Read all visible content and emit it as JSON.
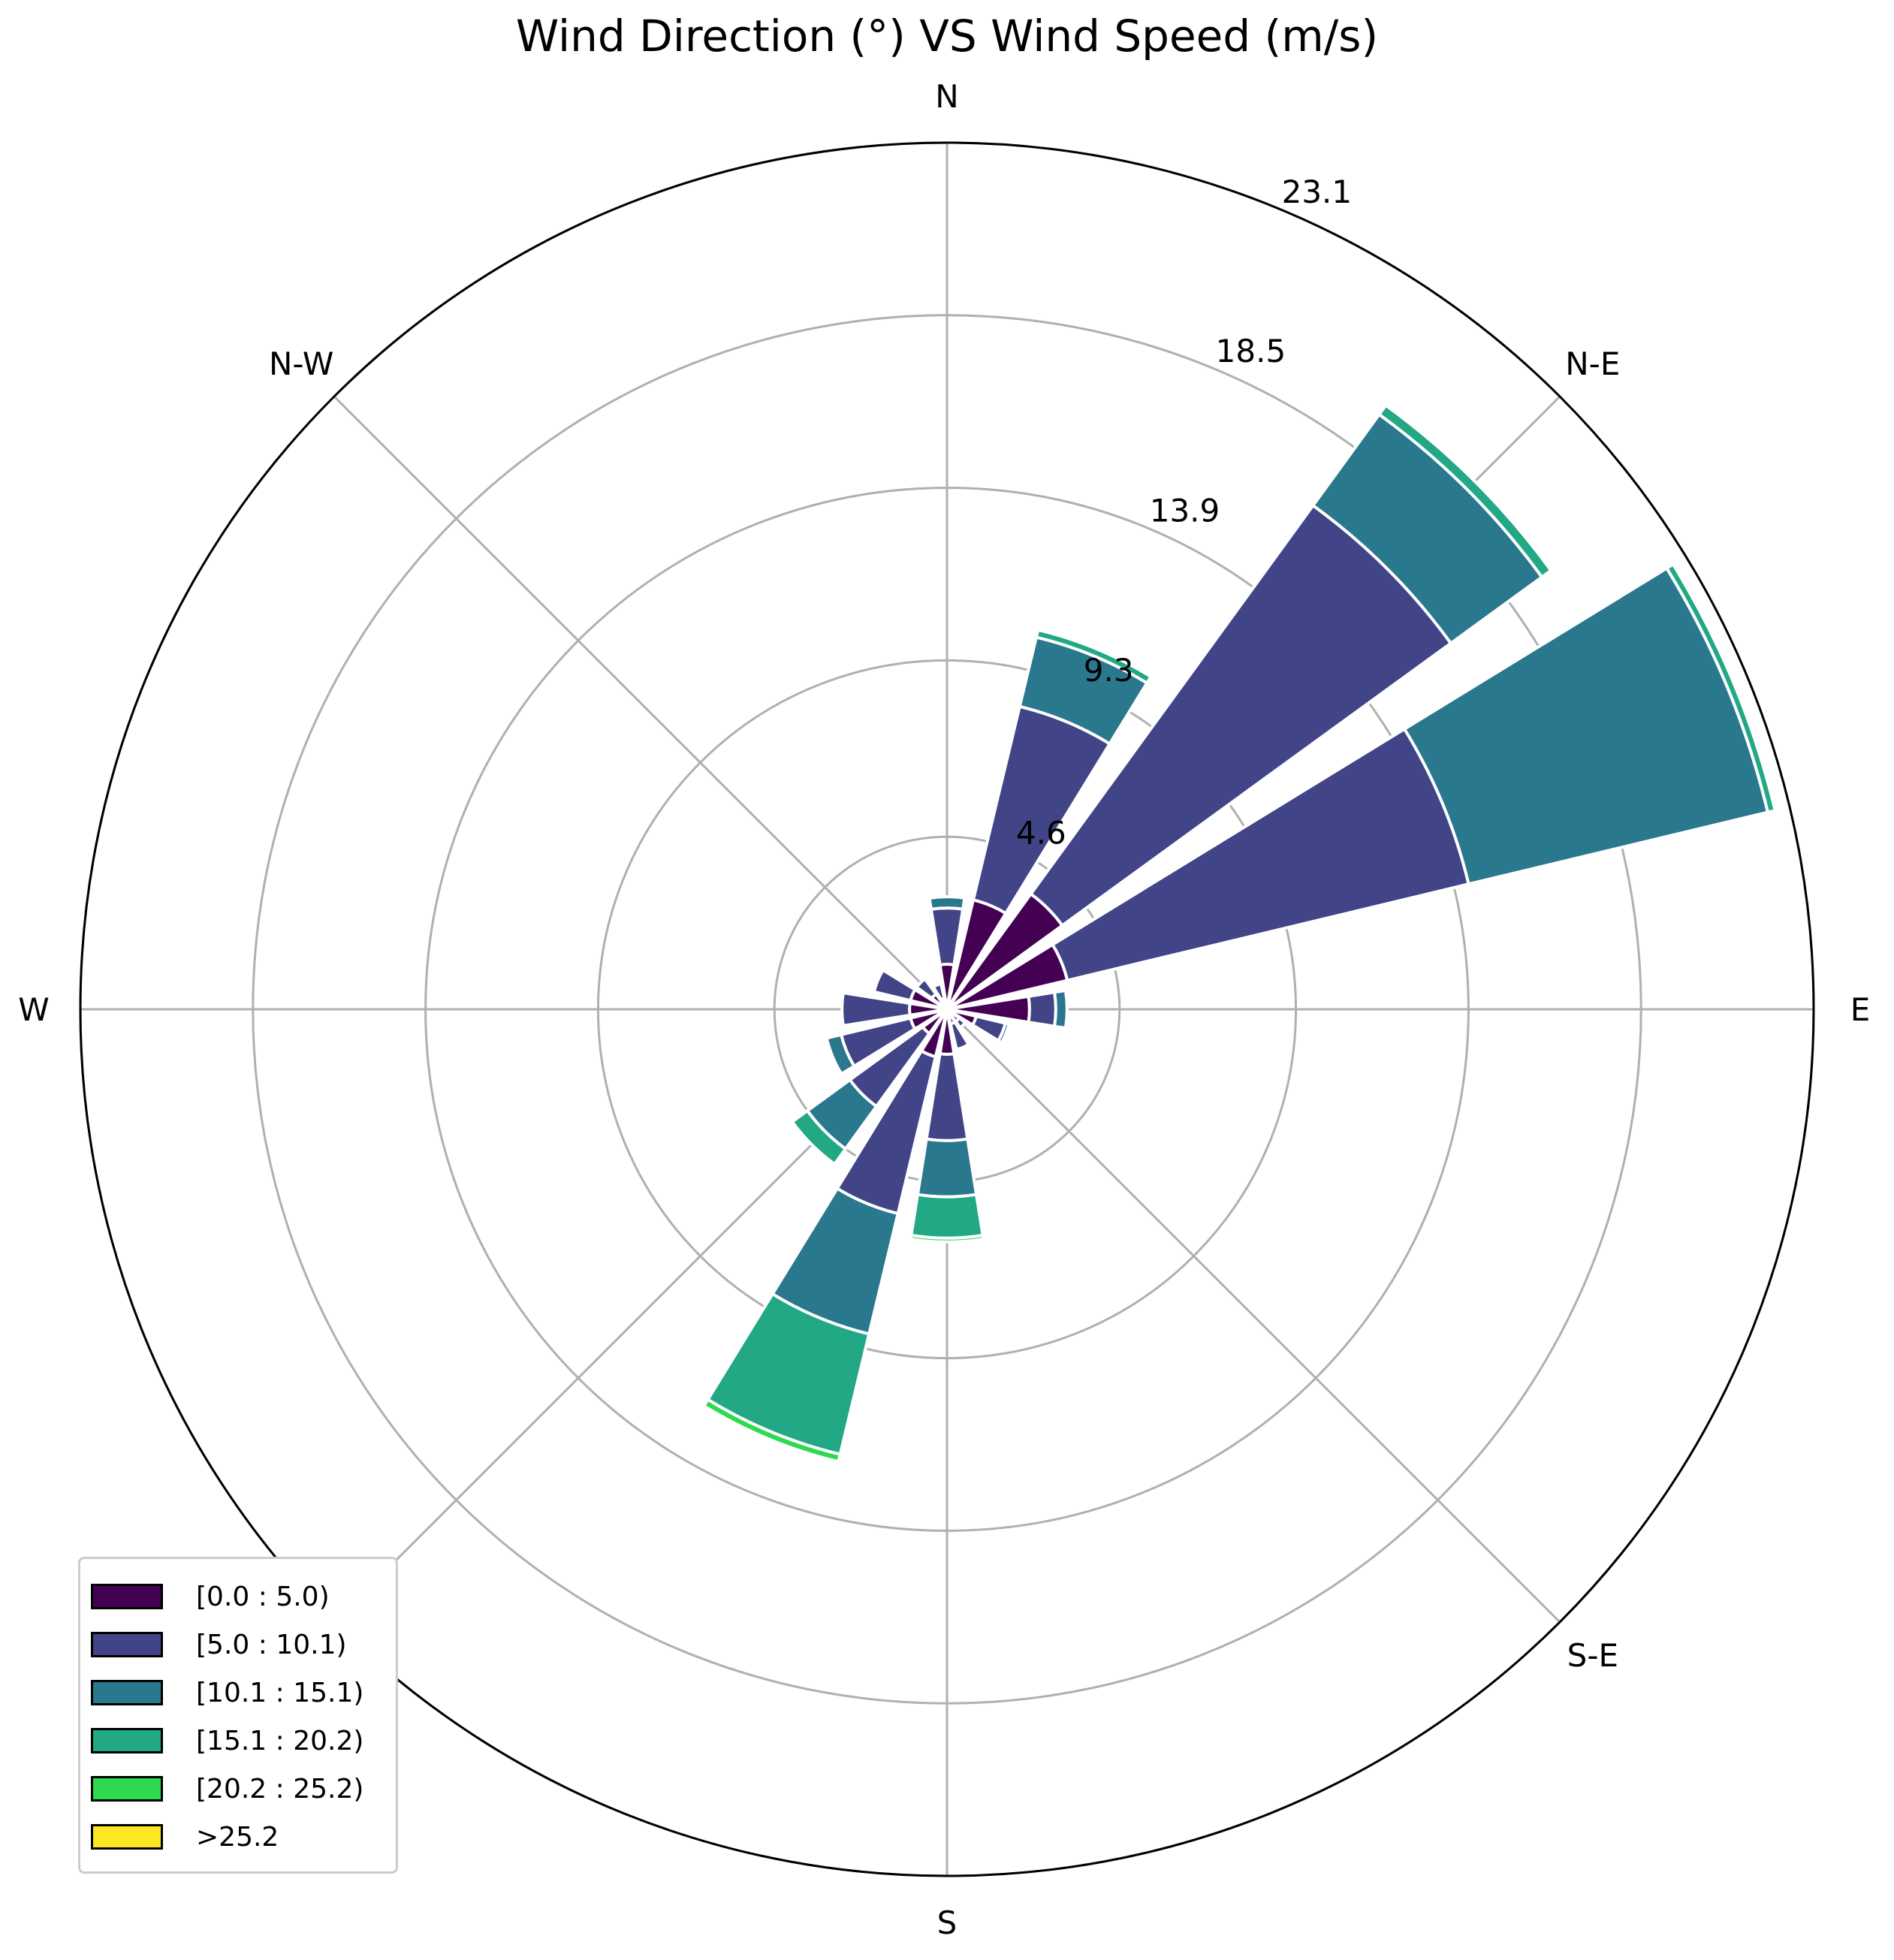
{
  "chart_data": {
    "type": "windrose",
    "title": "Wind Direction (°) VS Wind Speed (m/s)",
    "direction_labels": [
      "N",
      "N-E",
      "E",
      "S-E",
      "S",
      "W",
      "N-W"
    ],
    "radial_ticks": [
      "4.6",
      "9.3",
      "13.9",
      "18.5",
      "23.1"
    ],
    "radial_tick_values": [
      4.6,
      9.3,
      13.9,
      18.5,
      23.1
    ],
    "r_max": 23.1,
    "bins": [
      {
        "label": "[0.0 : 5.0)",
        "color": "#440154"
      },
      {
        "label": "[5.0 : 10.1)",
        "color": "#414487"
      },
      {
        "label": "[10.1 : 15.1)",
        "color": "#2a788e"
      },
      {
        "label": "[15.1 : 20.2)",
        "color": "#22a884"
      },
      {
        "label": "[20.2 : 25.2)",
        "color": "#2ed94f"
      },
      {
        "label": ">25.2",
        "color": "#fde725"
      }
    ],
    "directions_deg": [
      0,
      22.5,
      45,
      67.5,
      90,
      112.5,
      135,
      157.5,
      180,
      202.5,
      225,
      247.5,
      270,
      292.5,
      315,
      337.5
    ],
    "cumulative_values": [
      [
        1.2,
        2.7,
        3.0,
        3.0,
        3.0,
        3.0
      ],
      [
        3.0,
        8.3,
        10.2,
        10.4,
        10.4,
        10.4
      ],
      [
        3.8,
        16.6,
        19.6,
        19.9,
        19.9,
        19.9
      ],
      [
        3.3,
        14.3,
        22.5,
        22.7,
        22.7,
        22.7
      ],
      [
        2.2,
        2.9,
        3.2,
        3.2,
        3.2,
        3.2
      ],
      [
        0.8,
        1.6,
        1.7,
        1.7,
        1.7,
        1.7
      ],
      [
        0.4,
        0.6,
        0.6,
        0.6,
        0.6,
        0.6
      ],
      [
        0.4,
        1.1,
        1.1,
        1.1,
        1.1,
        1.1
      ],
      [
        1.2,
        3.5,
        5.0,
        6.1,
        6.2,
        6.2
      ],
      [
        1.3,
        5.6,
        8.9,
        12.2,
        12.4,
        12.4
      ],
      [
        0.8,
        3.2,
        4.6,
        5.1,
        5.1,
        5.1
      ],
      [
        1.0,
        2.9,
        3.3,
        3.3,
        3.3,
        3.3
      ],
      [
        1.0,
        2.8,
        2.8,
        2.8,
        2.8,
        2.8
      ],
      [
        1.0,
        2.0,
        2.0,
        2.0,
        2.0,
        2.0
      ],
      [
        0.5,
        1.0,
        1.0,
        1.0,
        1.0,
        1.0
      ],
      [
        0.3,
        0.7,
        0.7,
        0.7,
        0.7,
        0.7
      ]
    ],
    "legend_position": "lower-left"
  }
}
